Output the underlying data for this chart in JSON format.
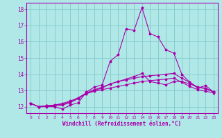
{
  "xlabel": "Windchill (Refroidissement éolien,°C)",
  "bg_color": "#b0e8e8",
  "line_color": "#aa00aa",
  "grid_color": "#88cccc",
  "xlim": [
    -0.5,
    23.5
  ],
  "ylim": [
    11.6,
    18.4
  ],
  "xticks": [
    0,
    1,
    2,
    3,
    4,
    5,
    6,
    7,
    8,
    9,
    10,
    11,
    12,
    13,
    14,
    15,
    16,
    17,
    18,
    19,
    20,
    21,
    22,
    23
  ],
  "yticks": [
    12,
    13,
    14,
    15,
    16,
    17,
    18
  ],
  "lines": [
    {
      "x": [
        0,
        1,
        2,
        3,
        4,
        5,
        6,
        7,
        8,
        9,
        10,
        11,
        12,
        13,
        14,
        15,
        16,
        17,
        18,
        19,
        20,
        21,
        22,
        23
      ],
      "y": [
        12.2,
        12.0,
        12.0,
        12.0,
        11.85,
        12.1,
        12.25,
        12.9,
        13.2,
        13.35,
        14.8,
        15.2,
        16.8,
        16.7,
        18.1,
        16.5,
        16.3,
        15.5,
        15.3,
        14.0,
        13.5,
        13.15,
        13.3,
        12.9
      ]
    },
    {
      "x": [
        0,
        1,
        2,
        3,
        4,
        5,
        6,
        7,
        8,
        9,
        10,
        11,
        12,
        13,
        14,
        15,
        16,
        17,
        18,
        19,
        20,
        21,
        22,
        23
      ],
      "y": [
        12.2,
        12.0,
        12.05,
        12.05,
        12.1,
        12.25,
        12.5,
        12.8,
        13.0,
        13.15,
        13.4,
        13.55,
        13.7,
        13.85,
        14.05,
        13.55,
        13.45,
        13.35,
        13.55,
        13.55,
        13.4,
        13.2,
        13.15,
        12.9
      ]
    },
    {
      "x": [
        0,
        1,
        2,
        3,
        4,
        5,
        6,
        7,
        8,
        9,
        10,
        11,
        12,
        13,
        14,
        15,
        16,
        17,
        18,
        19,
        20,
        21,
        22,
        23
      ],
      "y": [
        12.2,
        12.0,
        12.05,
        12.1,
        12.15,
        12.3,
        12.55,
        12.85,
        13.05,
        13.2,
        13.4,
        13.55,
        13.65,
        13.75,
        13.85,
        13.9,
        13.95,
        14.0,
        14.05,
        13.75,
        13.5,
        13.2,
        13.1,
        12.9
      ]
    },
    {
      "x": [
        0,
        1,
        2,
        3,
        4,
        5,
        6,
        7,
        8,
        9,
        10,
        11,
        12,
        13,
        14,
        15,
        16,
        17,
        18,
        19,
        20,
        21,
        22,
        23
      ],
      "y": [
        12.2,
        12.0,
        12.05,
        12.1,
        12.2,
        12.35,
        12.55,
        12.8,
        12.95,
        13.05,
        13.15,
        13.25,
        13.35,
        13.45,
        13.55,
        13.6,
        13.65,
        13.7,
        13.75,
        13.5,
        13.25,
        13.05,
        12.95,
        12.85
      ]
    }
  ]
}
